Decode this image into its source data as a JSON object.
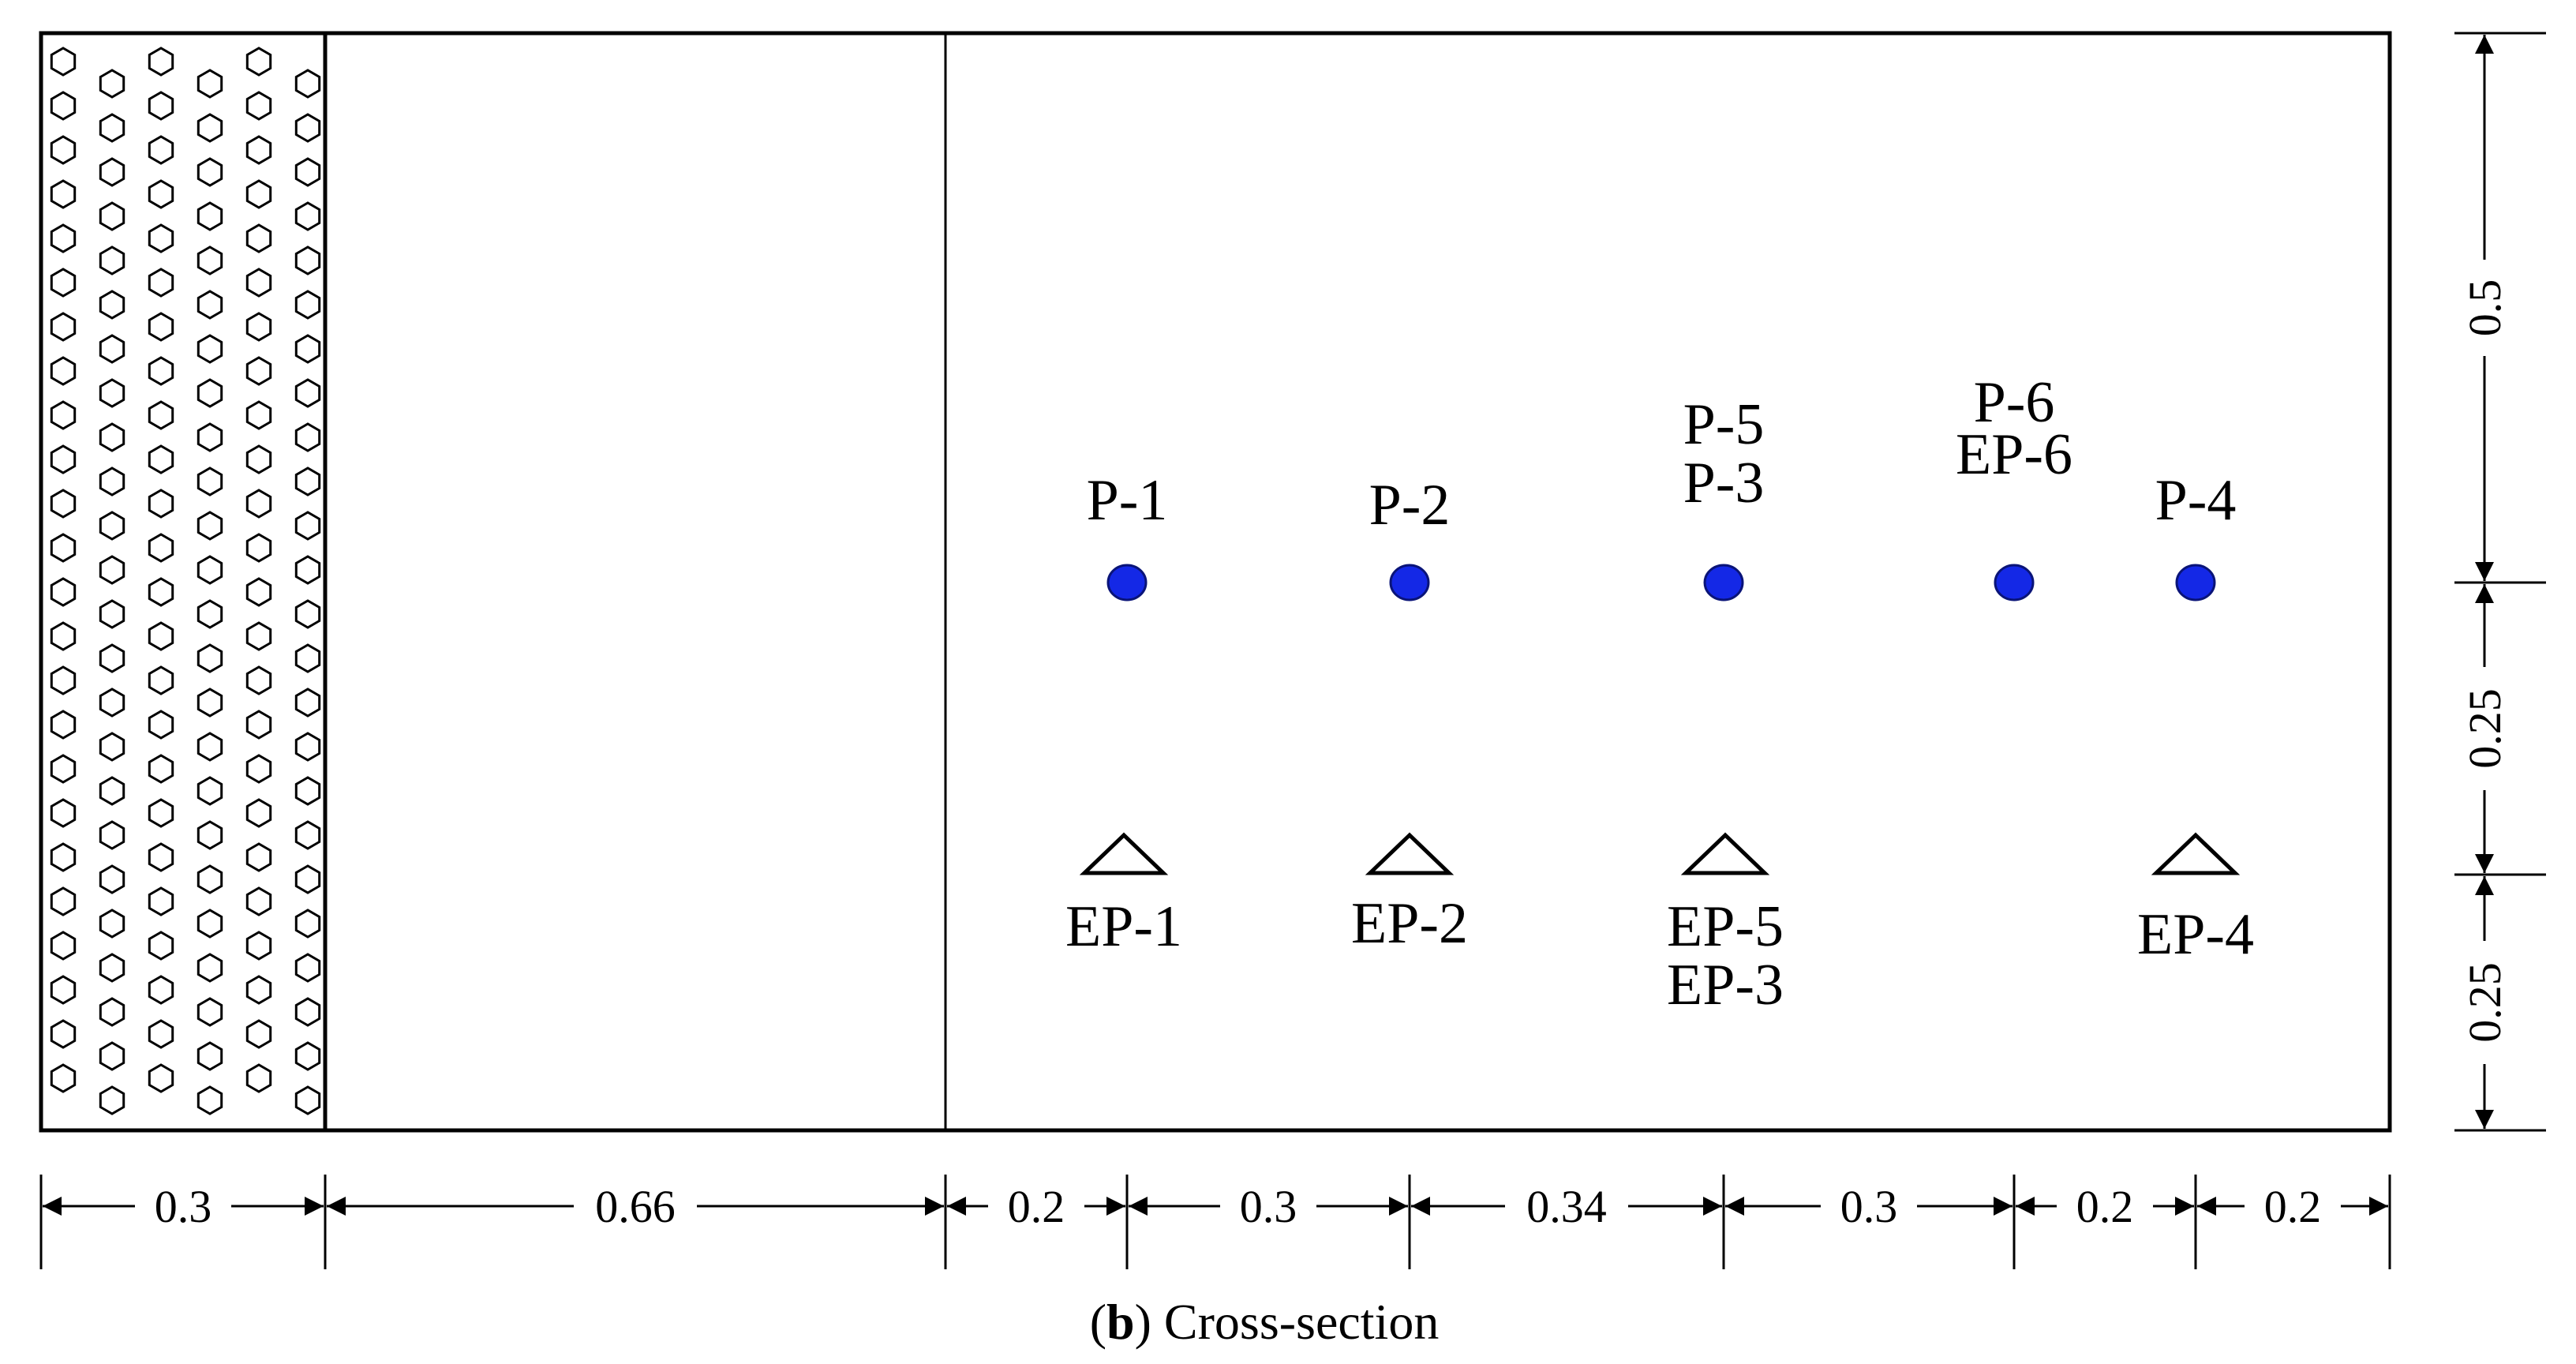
{
  "points_top": [
    {
      "lines": [
        "P-1"
      ]
    },
    {
      "lines": [
        "P-2"
      ]
    },
    {
      "lines": [
        "P-5",
        "P-3"
      ]
    },
    {
      "lines": [
        "P-6",
        "EP-6"
      ]
    },
    {
      "lines": [
        "P-4"
      ]
    }
  ],
  "points_bottom": [
    {
      "lines": [
        "EP-1"
      ]
    },
    {
      "lines": [
        "EP-2"
      ]
    },
    {
      "lines": [
        "EP-5",
        "EP-3"
      ]
    },
    {
      "lines": [
        "EP-4"
      ]
    }
  ],
  "horizontal_dims": [
    "0.3",
    "0.66",
    "0.2",
    "0.3",
    "0.34",
    "0.3",
    "0.2",
    "0.2"
  ],
  "vertical_dims": [
    "0.5",
    "0.25",
    "0.25"
  ],
  "caption": {
    "letter": "b",
    "text": " Cross-section"
  },
  "colors": {
    "point_fill": "#1428e6",
    "line": "#000000"
  }
}
